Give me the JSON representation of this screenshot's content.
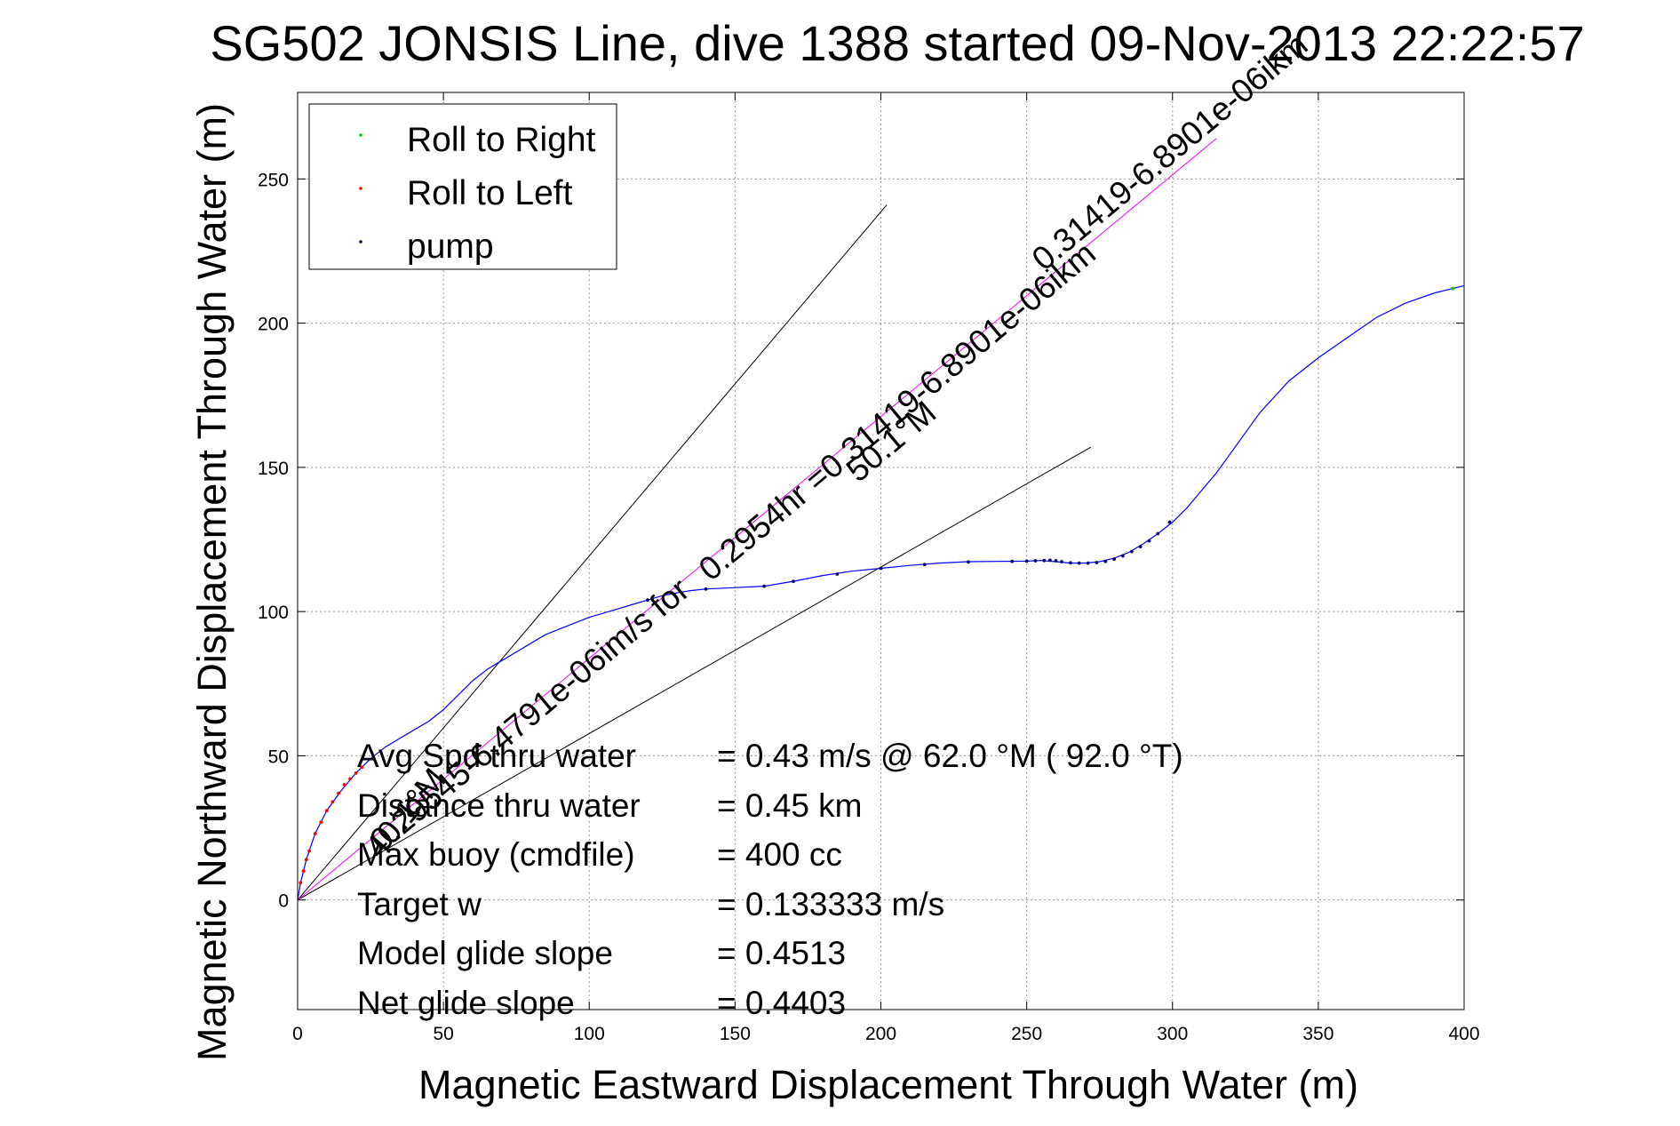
{
  "chart_data": {
    "type": "line",
    "title": "SG502 JONSIS Line, dive 1388 started 09-Nov-2013 22:22:57",
    "xlabel": "Magnetic Eastward Displacement Through Water (m)",
    "ylabel": "Magnetic Northward Displacement Through Water (m)",
    "xlim": [
      0,
      400
    ],
    "ylim": [
      -38,
      280
    ],
    "xticks": [
      0,
      50,
      100,
      150,
      200,
      250,
      300,
      350,
      400
    ],
    "yticks": [
      0,
      50,
      100,
      150,
      200,
      250
    ],
    "grid": true,
    "legend": {
      "placement": "top-left",
      "entries": [
        {
          "label": "Roll to Right",
          "color": "#00cc00"
        },
        {
          "label": "Roll to Left",
          "color": "#ff0000"
        },
        {
          "label": "pump",
          "color": "#000066"
        }
      ]
    },
    "series": [
      {
        "color": "#0000ff",
        "x": [
          0,
          1,
          3,
          6,
          10,
          15,
          20,
          25,
          30,
          35,
          40,
          45,
          50,
          55,
          60,
          65,
          70,
          75,
          80,
          85,
          90,
          95,
          100,
          105,
          110,
          115,
          120,
          125,
          130,
          135,
          140,
          150,
          160,
          170,
          180,
          190,
          200,
          210,
          220,
          230,
          240,
          250,
          255,
          260,
          265,
          270,
          275,
          280,
          285,
          290,
          295,
          300,
          305,
          310,
          315,
          320,
          330,
          340,
          350,
          360,
          370,
          380,
          390,
          396,
          400
        ],
        "y": [
          0,
          6,
          14,
          23,
          31,
          38,
          44,
          49,
          53,
          56,
          59,
          62,
          66,
          71,
          76,
          80,
          83,
          86,
          89,
          92,
          94,
          96,
          98,
          99.5,
          101,
          102.5,
          104,
          105.5,
          106.5,
          107.3,
          107.8,
          108.3,
          108.8,
          110.5,
          112.5,
          114,
          115,
          116,
          116.8,
          117.3,
          117.4,
          117.5,
          117.7,
          117.3,
          116.8,
          116.8,
          117.3,
          118.5,
          120.5,
          123.5,
          127,
          131,
          136,
          142,
          148,
          155,
          169,
          180,
          188,
          195,
          202,
          207,
          210.5,
          212,
          213
        ]
      },
      {
        "name": "Roll to Left",
        "color": "#ff0000",
        "x": [
          1,
          2,
          3,
          4,
          6,
          8,
          10,
          12,
          14,
          16,
          18,
          20,
          22
        ],
        "y": [
          6,
          10,
          14,
          17,
          23,
          27,
          31,
          34,
          37,
          40,
          42,
          44,
          46
        ]
      },
      {
        "name": "pump",
        "color": "#000066",
        "x": [
          245,
          250,
          253,
          256,
          258,
          260,
          262,
          265,
          268,
          271,
          274,
          277,
          280,
          283,
          286,
          289,
          292,
          295,
          299,
          160,
          170,
          185,
          200,
          215,
          230,
          140,
          120
        ],
        "y": [
          117.4,
          117.5,
          117.6,
          117.7,
          117.8,
          117.6,
          117.3,
          116.9,
          116.8,
          116.8,
          117.0,
          117.4,
          118.2,
          119.3,
          120.8,
          122.5,
          124.5,
          127.0,
          131.0,
          108.8,
          110.5,
          113.0,
          115.0,
          116.3,
          117.2,
          107.8,
          104.0
        ]
      },
      {
        "name": "Roll to Right",
        "color": "#00cc00",
        "x": [
          396
        ],
        "y": [
          212
        ]
      }
    ],
    "reference_lines": [
      {
        "color": "#000000",
        "x": [
          0,
          202
        ],
        "y": [
          0,
          241
        ]
      },
      {
        "color": "#000000",
        "x": [
          0,
          272
        ],
        "y": [
          0,
          157
        ]
      },
      {
        "color": "#ff00ff",
        "x": [
          0,
          315
        ],
        "y": [
          0,
          264
        ]
      }
    ],
    "annotations": [
      {
        "text": "0.31419-6.8901e-06ikm"
      },
      {
        "text": "50.1°M"
      },
      {
        "text": "0.2954hr =0.31419-6.8901e-06ikm"
      },
      {
        "text": "0.29545-6.4791e-06im/s for"
      },
      {
        "text": "40.1°M"
      }
    ],
    "stats": [
      {
        "label": "Avg Spd thru water",
        "value": "=  0.43 m/s @  62.0 °M ( 92.0 °T)"
      },
      {
        "label": "Distance thru water",
        "value": "=  0.45 km"
      },
      {
        "label": "Max buoy (cmdfile)",
        "value": "= 400 cc"
      },
      {
        "label": "Target w",
        "value": "= 0.133333 m/s"
      },
      {
        "label": "Model glide slope",
        "value": "= 0.4513"
      },
      {
        "label": "Net glide slope",
        "value": "= 0.4403"
      }
    ]
  }
}
